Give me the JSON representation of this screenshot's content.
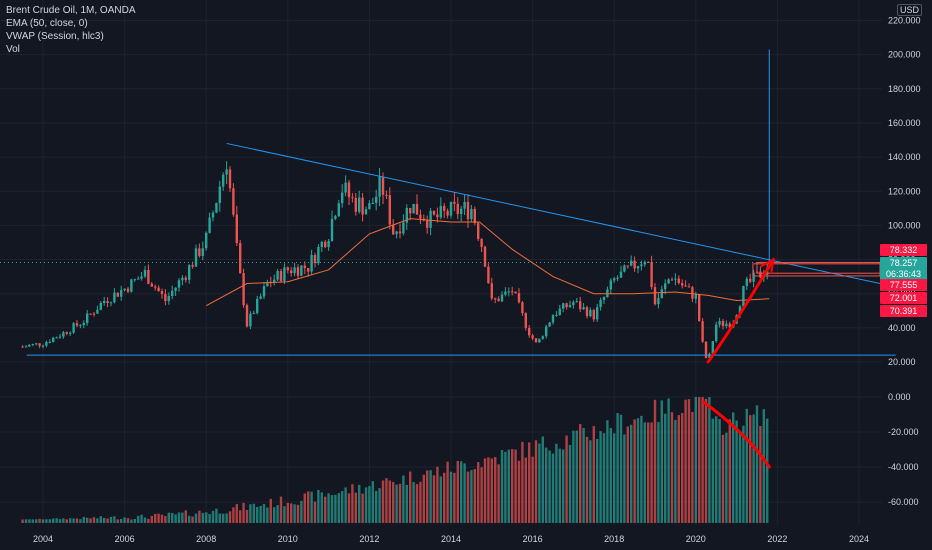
{
  "legend": {
    "symbol": "Brent Crude Oil, 1M, OANDA",
    "ema": "EMA (50, close, 0)",
    "vwap": "VWAP (Session, hlc3)",
    "vol": "Vol"
  },
  "currency": "USD",
  "price_tags": {
    "tag1": "78.332",
    "tag2": "78.257",
    "tag3": "06:36:43",
    "tag4": "77.555",
    "tag5": "72.001",
    "tag6": "70.391"
  },
  "colors": {
    "background": "#131722",
    "up": "#26a69a",
    "down": "#ef5350",
    "trendline": "#2196f3",
    "ema": "#ef6c3a",
    "annotation": "#ff0000",
    "grid": "#1e222d"
  },
  "chart_data": [
    {
      "type": "candlestick",
      "title": "Brent Crude Oil, 1M, OANDA",
      "x_ticks": [
        "2004",
        "2006",
        "2008",
        "2010",
        "2012",
        "2014",
        "2016",
        "2018",
        "2020",
        "2022",
        "2024"
      ],
      "y_ticks": [
        "20.000",
        "40.000",
        "60.000",
        "80.000",
        "100.000",
        "120.000",
        "140.000",
        "160.000",
        "180.000",
        "200.000",
        "220.000"
      ],
      "ylim": [
        13,
        228
      ],
      "xlim": [
        2003.3,
        2025.0
      ],
      "series": [
        {
          "name": "Brent Crude Oil",
          "close_points": [
            [
              2003.5,
              29
            ],
            [
              2004.0,
              31
            ],
            [
              2004.5,
              37
            ],
            [
              2005.0,
              44
            ],
            [
              2005.5,
              56
            ],
            [
              2006.0,
              63
            ],
            [
              2006.5,
              72
            ],
            [
              2007.0,
              56
            ],
            [
              2007.5,
              72
            ],
            [
              2008.0,
              92
            ],
            [
              2008.5,
              139
            ],
            [
              2008.8,
              75
            ],
            [
              2009.0,
              42
            ],
            [
              2009.5,
              66
            ],
            [
              2010.0,
              74
            ],
            [
              2010.5,
              76
            ],
            [
              2011.0,
              96
            ],
            [
              2011.3,
              123
            ],
            [
              2011.6,
              114
            ],
            [
              2012.0,
              110
            ],
            [
              2012.3,
              124
            ],
            [
              2012.6,
              95
            ],
            [
              2013.0,
              112
            ],
            [
              2013.5,
              103
            ],
            [
              2014.0,
              108
            ],
            [
              2014.5,
              110
            ],
            [
              2014.8,
              85
            ],
            [
              2015.0,
              55
            ],
            [
              2015.5,
              62
            ],
            [
              2015.9,
              38
            ],
            [
              2016.1,
              30
            ],
            [
              2016.5,
              48
            ],
            [
              2017.0,
              55
            ],
            [
              2017.5,
              47
            ],
            [
              2018.0,
              68
            ],
            [
              2018.8,
              82
            ],
            [
              2019.0,
              54
            ],
            [
              2019.4,
              71
            ],
            [
              2019.8,
              62
            ],
            [
              2020.0,
              58
            ],
            [
              2020.2,
              25
            ],
            [
              2020.3,
              20
            ],
            [
              2020.5,
              42
            ],
            [
              2020.9,
              43
            ],
            [
              2021.2,
              64
            ],
            [
              2021.6,
              72
            ],
            [
              2021.8,
              78
            ]
          ]
        },
        {
          "name": "EMA (50, close, 0)",
          "points": [
            [
              2008.0,
              53
            ],
            [
              2009.0,
              66
            ],
            [
              2010.0,
              67
            ],
            [
              2011.0,
              74
            ],
            [
              2012.0,
              95
            ],
            [
              2013.0,
              104
            ],
            [
              2014.0,
              102
            ],
            [
              2014.7,
              102
            ],
            [
              2015.5,
              86
            ],
            [
              2016.5,
              70
            ],
            [
              2017.5,
              60
            ],
            [
              2018.5,
              60
            ],
            [
              2019.5,
              61
            ],
            [
              2020.3,
              59
            ],
            [
              2021.0,
              56
            ],
            [
              2021.8,
              57
            ]
          ]
        }
      ],
      "drawings": {
        "descending_trendline": [
          [
            2008.5,
            148
          ],
          [
            2024.9,
            64
          ]
        ],
        "support_line": [
          [
            2003.6,
            24
          ],
          [
            2024.9,
            24
          ]
        ],
        "vertical_line": {
          "x": 2021.8,
          "y_from": 79,
          "y_to": 203
        },
        "current_price_line": 78.257
      }
    },
    {
      "type": "bar",
      "title": "Vol",
      "y_ticks": [
        "0.000",
        "-20.000",
        "-40.000",
        "-60.000"
      ],
      "ylim": [
        -77,
        0
      ],
      "years": [
        2003.6,
        2021.8
      ],
      "note": "volume increases from ~2012 with peaks around 2018-2020"
    }
  ]
}
